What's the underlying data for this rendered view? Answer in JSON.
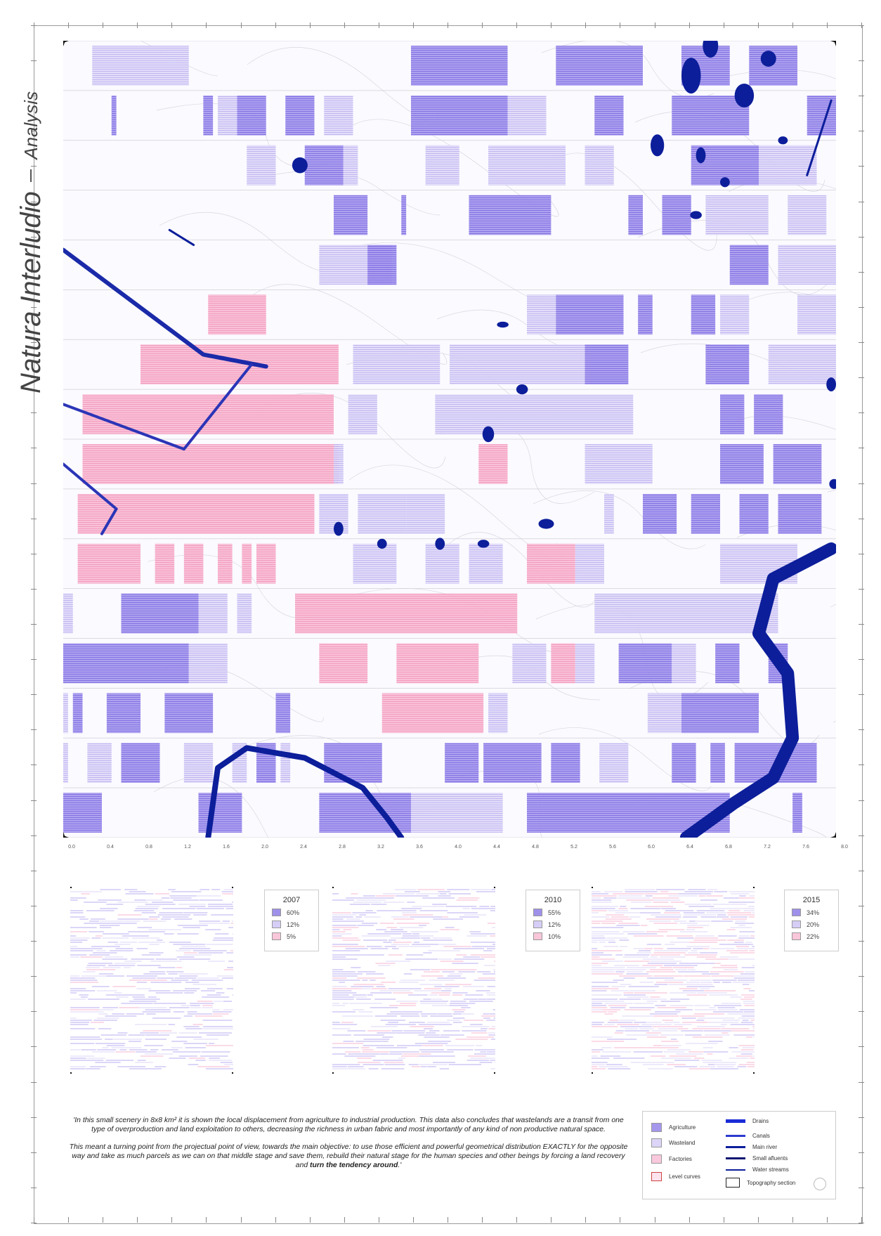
{
  "title": {
    "main": "Natura Interludio",
    "sub": "Analysis"
  },
  "colors": {
    "agriculture": "#8a78e8",
    "wasteland": "#c4b9f0",
    "factories": "#f7a5c6",
    "water": "#0c1e9a",
    "drains": "#1b2bd6"
  },
  "axis": {
    "ticks": [
      "0.0",
      "0.4",
      "0.8",
      "1.2",
      "1.6",
      "2.0",
      "2.4",
      "2.8",
      "3.2",
      "3.6",
      "4.0",
      "4.4",
      "4.8",
      "5.2",
      "5.6",
      "6.0",
      "6.4",
      "6.8",
      "7.2",
      "7.6",
      "8.0"
    ]
  },
  "main_map": {
    "x_range_km": [
      0,
      8
    ],
    "y_range_km": [
      0,
      8
    ],
    "strips": 16,
    "parcels": [
      {
        "row": 0,
        "x0": 0.3,
        "x1": 1.3,
        "type": "wasteland"
      },
      {
        "row": 0,
        "x0": 3.6,
        "x1": 4.6,
        "type": "agriculture"
      },
      {
        "row": 0,
        "x0": 5.1,
        "x1": 6.0,
        "type": "agriculture"
      },
      {
        "row": 0,
        "x0": 6.4,
        "x1": 6.9,
        "type": "agriculture"
      },
      {
        "row": 0,
        "x0": 7.1,
        "x1": 7.6,
        "type": "agriculture"
      },
      {
        "row": 1,
        "x0": 0.5,
        "x1": 0.55,
        "type": "agriculture"
      },
      {
        "row": 1,
        "x0": 1.45,
        "x1": 1.55,
        "type": "agriculture"
      },
      {
        "row": 1,
        "x0": 1.6,
        "x1": 1.8,
        "type": "wasteland"
      },
      {
        "row": 1,
        "x0": 1.8,
        "x1": 2.1,
        "type": "agriculture"
      },
      {
        "row": 1,
        "x0": 2.3,
        "x1": 2.6,
        "type": "agriculture"
      },
      {
        "row": 1,
        "x0": 2.7,
        "x1": 3.0,
        "type": "wasteland"
      },
      {
        "row": 1,
        "x0": 3.6,
        "x1": 4.6,
        "type": "agriculture"
      },
      {
        "row": 1,
        "x0": 4.6,
        "x1": 5.0,
        "type": "wasteland"
      },
      {
        "row": 1,
        "x0": 5.5,
        "x1": 5.8,
        "type": "agriculture"
      },
      {
        "row": 1,
        "x0": 6.3,
        "x1": 7.1,
        "type": "agriculture"
      },
      {
        "row": 1,
        "x0": 7.7,
        "x1": 8.0,
        "type": "agriculture"
      },
      {
        "row": 2,
        "x0": 1.9,
        "x1": 2.2,
        "type": "wasteland"
      },
      {
        "row": 2,
        "x0": 2.5,
        "x1": 2.9,
        "type": "agriculture"
      },
      {
        "row": 2,
        "x0": 2.9,
        "x1": 3.05,
        "type": "wasteland"
      },
      {
        "row": 2,
        "x0": 3.75,
        "x1": 4.1,
        "type": "wasteland"
      },
      {
        "row": 2,
        "x0": 4.4,
        "x1": 5.2,
        "type": "wasteland"
      },
      {
        "row": 2,
        "x0": 5.4,
        "x1": 5.7,
        "type": "wasteland"
      },
      {
        "row": 2,
        "x0": 6.5,
        "x1": 7.2,
        "type": "agriculture"
      },
      {
        "row": 2,
        "x0": 7.2,
        "x1": 7.8,
        "type": "wasteland"
      },
      {
        "row": 3,
        "x0": 2.8,
        "x1": 3.15,
        "type": "agriculture"
      },
      {
        "row": 3,
        "x0": 3.5,
        "x1": 3.55,
        "type": "agriculture"
      },
      {
        "row": 3,
        "x0": 4.2,
        "x1": 5.05,
        "type": "agriculture"
      },
      {
        "row": 3,
        "x0": 5.85,
        "x1": 6.0,
        "type": "agriculture"
      },
      {
        "row": 3,
        "x0": 6.2,
        "x1": 6.5,
        "type": "agriculture"
      },
      {
        "row": 3,
        "x0": 6.65,
        "x1": 7.3,
        "type": "wasteland"
      },
      {
        "row": 3,
        "x0": 7.5,
        "x1": 7.9,
        "type": "wasteland"
      },
      {
        "row": 4,
        "x0": 2.65,
        "x1": 3.4,
        "type": "wasteland"
      },
      {
        "row": 4,
        "x0": 3.15,
        "x1": 3.45,
        "type": "agriculture"
      },
      {
        "row": 4,
        "x0": 6.9,
        "x1": 7.3,
        "type": "agriculture"
      },
      {
        "row": 4,
        "x0": 7.4,
        "x1": 8.0,
        "type": "wasteland"
      },
      {
        "row": 5,
        "x0": 1.5,
        "x1": 2.1,
        "type": "factories"
      },
      {
        "row": 5,
        "x0": 4.8,
        "x1": 5.1,
        "type": "wasteland"
      },
      {
        "row": 5,
        "x0": 5.1,
        "x1": 5.8,
        "type": "agriculture"
      },
      {
        "row": 5,
        "x0": 5.95,
        "x1": 6.1,
        "type": "agriculture"
      },
      {
        "row": 5,
        "x0": 6.5,
        "x1": 6.75,
        "type": "agriculture"
      },
      {
        "row": 5,
        "x0": 6.8,
        "x1": 7.1,
        "type": "wasteland"
      },
      {
        "row": 5,
        "x0": 7.6,
        "x1": 8.0,
        "type": "wasteland"
      },
      {
        "row": 6,
        "x0": 0.8,
        "x1": 2.85,
        "type": "factories"
      },
      {
        "row": 6,
        "x0": 3.0,
        "x1": 3.9,
        "type": "wasteland"
      },
      {
        "row": 6,
        "x0": 4.0,
        "x1": 5.4,
        "type": "wasteland"
      },
      {
        "row": 6,
        "x0": 5.4,
        "x1": 5.85,
        "type": "agriculture"
      },
      {
        "row": 6,
        "x0": 6.65,
        "x1": 7.1,
        "type": "agriculture"
      },
      {
        "row": 6,
        "x0": 7.3,
        "x1": 8.0,
        "type": "wasteland"
      },
      {
        "row": 7,
        "x0": 0.2,
        "x1": 2.8,
        "type": "factories"
      },
      {
        "row": 7,
        "x0": 2.95,
        "x1": 3.25,
        "type": "wasteland"
      },
      {
        "row": 7,
        "x0": 3.85,
        "x1": 5.9,
        "type": "wasteland"
      },
      {
        "row": 7,
        "x0": 6.8,
        "x1": 7.05,
        "type": "agriculture"
      },
      {
        "row": 7,
        "x0": 7.15,
        "x1": 7.45,
        "type": "agriculture"
      },
      {
        "row": 8,
        "x0": 0.2,
        "x1": 2.85,
        "type": "factories"
      },
      {
        "row": 8,
        "x0": 2.8,
        "x1": 2.9,
        "type": "wasteland"
      },
      {
        "row": 8,
        "x0": 4.3,
        "x1": 4.6,
        "type": "factories"
      },
      {
        "row": 8,
        "x0": 5.4,
        "x1": 6.1,
        "type": "wasteland"
      },
      {
        "row": 8,
        "x0": 6.8,
        "x1": 7.25,
        "type": "agriculture"
      },
      {
        "row": 8,
        "x0": 7.35,
        "x1": 7.85,
        "type": "agriculture"
      },
      {
        "row": 9,
        "x0": 0.15,
        "x1": 2.6,
        "type": "factories"
      },
      {
        "row": 9,
        "x0": 2.65,
        "x1": 2.95,
        "type": "wasteland"
      },
      {
        "row": 9,
        "x0": 3.05,
        "x1": 3.55,
        "type": "wasteland"
      },
      {
        "row": 9,
        "x0": 3.55,
        "x1": 3.95,
        "type": "wasteland"
      },
      {
        "row": 9,
        "x0": 5.6,
        "x1": 5.7,
        "type": "wasteland"
      },
      {
        "row": 9,
        "x0": 6.0,
        "x1": 6.35,
        "type": "agriculture"
      },
      {
        "row": 9,
        "x0": 6.5,
        "x1": 6.8,
        "type": "agriculture"
      },
      {
        "row": 9,
        "x0": 7.0,
        "x1": 7.3,
        "type": "agriculture"
      },
      {
        "row": 9,
        "x0": 7.4,
        "x1": 7.85,
        "type": "agriculture"
      },
      {
        "row": 10,
        "x0": 0.15,
        "x1": 0.8,
        "type": "factories"
      },
      {
        "row": 10,
        "x0": 0.95,
        "x1": 1.15,
        "type": "factories"
      },
      {
        "row": 10,
        "x0": 1.25,
        "x1": 1.45,
        "type": "factories"
      },
      {
        "row": 10,
        "x0": 1.6,
        "x1": 1.75,
        "type": "factories"
      },
      {
        "row": 10,
        "x0": 1.85,
        "x1": 1.95,
        "type": "factories"
      },
      {
        "row": 10,
        "x0": 2.0,
        "x1": 2.2,
        "type": "factories"
      },
      {
        "row": 10,
        "x0": 3.0,
        "x1": 3.45,
        "type": "wasteland"
      },
      {
        "row": 10,
        "x0": 3.75,
        "x1": 4.1,
        "type": "wasteland"
      },
      {
        "row": 10,
        "x0": 4.2,
        "x1": 4.55,
        "type": "wasteland"
      },
      {
        "row": 10,
        "x0": 4.8,
        "x1": 5.3,
        "type": "factories"
      },
      {
        "row": 10,
        "x0": 5.3,
        "x1": 5.6,
        "type": "wasteland"
      },
      {
        "row": 10,
        "x0": 6.8,
        "x1": 7.6,
        "type": "wasteland"
      },
      {
        "row": 11,
        "x0": 0.0,
        "x1": 0.1,
        "type": "wasteland"
      },
      {
        "row": 11,
        "x0": 0.6,
        "x1": 1.4,
        "type": "agriculture"
      },
      {
        "row": 11,
        "x0": 1.4,
        "x1": 1.7,
        "type": "wasteland"
      },
      {
        "row": 11,
        "x0": 1.8,
        "x1": 1.95,
        "type": "wasteland"
      },
      {
        "row": 11,
        "x0": 2.4,
        "x1": 4.7,
        "type": "factories"
      },
      {
        "row": 11,
        "x0": 5.5,
        "x1": 6.8,
        "type": "wasteland"
      },
      {
        "row": 11,
        "x0": 6.8,
        "x1": 7.4,
        "type": "wasteland"
      },
      {
        "row": 12,
        "x0": 0.0,
        "x1": 1.3,
        "type": "agriculture"
      },
      {
        "row": 12,
        "x0": 1.3,
        "x1": 1.7,
        "type": "wasteland"
      },
      {
        "row": 12,
        "x0": 2.65,
        "x1": 3.15,
        "type": "factories"
      },
      {
        "row": 12,
        "x0": 3.45,
        "x1": 4.3,
        "type": "factories"
      },
      {
        "row": 12,
        "x0": 4.65,
        "x1": 5.0,
        "type": "wasteland"
      },
      {
        "row": 12,
        "x0": 5.05,
        "x1": 5.3,
        "type": "factories"
      },
      {
        "row": 12,
        "x0": 5.3,
        "x1": 5.5,
        "type": "wasteland"
      },
      {
        "row": 12,
        "x0": 5.75,
        "x1": 6.3,
        "type": "agriculture"
      },
      {
        "row": 12,
        "x0": 6.3,
        "x1": 6.55,
        "type": "wasteland"
      },
      {
        "row": 12,
        "x0": 6.75,
        "x1": 7.0,
        "type": "agriculture"
      },
      {
        "row": 12,
        "x0": 7.3,
        "x1": 7.5,
        "type": "agriculture"
      },
      {
        "row": 13,
        "x0": 0.0,
        "x1": 0.05,
        "type": "wasteland"
      },
      {
        "row": 13,
        "x0": 0.1,
        "x1": 0.2,
        "type": "agriculture"
      },
      {
        "row": 13,
        "x0": 0.45,
        "x1": 0.8,
        "type": "agriculture"
      },
      {
        "row": 13,
        "x0": 1.05,
        "x1": 1.55,
        "type": "agriculture"
      },
      {
        "row": 13,
        "x0": 2.2,
        "x1": 2.35,
        "type": "agriculture"
      },
      {
        "row": 13,
        "x0": 3.3,
        "x1": 4.35,
        "type": "factories"
      },
      {
        "row": 13,
        "x0": 4.4,
        "x1": 4.6,
        "type": "wasteland"
      },
      {
        "row": 13,
        "x0": 6.05,
        "x1": 6.4,
        "type": "wasteland"
      },
      {
        "row": 13,
        "x0": 6.4,
        "x1": 7.2,
        "type": "agriculture"
      },
      {
        "row": 14,
        "x0": 0.0,
        "x1": 0.05,
        "type": "wasteland"
      },
      {
        "row": 14,
        "x0": 0.25,
        "x1": 0.5,
        "type": "wasteland"
      },
      {
        "row": 14,
        "x0": 0.6,
        "x1": 1.0,
        "type": "agriculture"
      },
      {
        "row": 14,
        "x0": 1.25,
        "x1": 1.55,
        "type": "wasteland"
      },
      {
        "row": 14,
        "x0": 1.75,
        "x1": 1.9,
        "type": "wasteland"
      },
      {
        "row": 14,
        "x0": 2.0,
        "x1": 2.2,
        "type": "agriculture"
      },
      {
        "row": 14,
        "x0": 2.25,
        "x1": 2.35,
        "type": "wasteland"
      },
      {
        "row": 14,
        "x0": 2.7,
        "x1": 3.3,
        "type": "agriculture"
      },
      {
        "row": 14,
        "x0": 3.95,
        "x1": 4.3,
        "type": "agriculture"
      },
      {
        "row": 14,
        "x0": 4.35,
        "x1": 4.6,
        "type": "agriculture"
      },
      {
        "row": 14,
        "x0": 4.6,
        "x1": 4.95,
        "type": "agriculture"
      },
      {
        "row": 14,
        "x0": 5.05,
        "x1": 5.35,
        "type": "agriculture"
      },
      {
        "row": 14,
        "x0": 5.55,
        "x1": 5.85,
        "type": "wasteland"
      },
      {
        "row": 14,
        "x0": 6.3,
        "x1": 6.55,
        "type": "agriculture"
      },
      {
        "row": 14,
        "x0": 6.7,
        "x1": 6.85,
        "type": "agriculture"
      },
      {
        "row": 14,
        "x0": 6.95,
        "x1": 7.8,
        "type": "agriculture"
      },
      {
        "row": 15,
        "x0": 0.0,
        "x1": 0.4,
        "type": "agriculture"
      },
      {
        "row": 15,
        "x0": 1.4,
        "x1": 1.85,
        "type": "agriculture"
      },
      {
        "row": 15,
        "x0": 2.65,
        "x1": 3.6,
        "type": "agriculture"
      },
      {
        "row": 15,
        "x0": 3.6,
        "x1": 4.55,
        "type": "wasteland"
      },
      {
        "row": 15,
        "x0": 4.8,
        "x1": 6.9,
        "type": "agriculture"
      },
      {
        "row": 15,
        "x0": 7.55,
        "x1": 7.65,
        "type": "agriculture"
      }
    ],
    "water_bodies": [
      {
        "x": 6.7,
        "y": 0.05,
        "rx": 0.08,
        "ry": 0.12
      },
      {
        "x": 6.5,
        "y": 0.35,
        "rx": 0.1,
        "ry": 0.18
      },
      {
        "x": 7.05,
        "y": 0.55,
        "rx": 0.1,
        "ry": 0.12
      },
      {
        "x": 7.3,
        "y": 0.18,
        "rx": 0.08,
        "ry": 0.08
      },
      {
        "x": 6.15,
        "y": 1.05,
        "rx": 0.07,
        "ry": 0.11
      },
      {
        "x": 7.45,
        "y": 1.0,
        "rx": 0.05,
        "ry": 0.04
      },
      {
        "x": 6.6,
        "y": 1.15,
        "rx": 0.05,
        "ry": 0.08
      },
      {
        "x": 6.85,
        "y": 1.42,
        "rx": 0.05,
        "ry": 0.05
      },
      {
        "x": 6.55,
        "y": 1.75,
        "rx": 0.06,
        "ry": 0.04
      },
      {
        "x": 2.45,
        "y": 1.25,
        "rx": 0.08,
        "ry": 0.08
      },
      {
        "x": 4.55,
        "y": 2.85,
        "rx": 0.06,
        "ry": 0.03
      },
      {
        "x": 4.75,
        "y": 3.5,
        "rx": 0.06,
        "ry": 0.05
      },
      {
        "x": 4.4,
        "y": 3.95,
        "rx": 0.06,
        "ry": 0.08
      },
      {
        "x": 7.95,
        "y": 3.45,
        "rx": 0.05,
        "ry": 0.07
      },
      {
        "x": 7.98,
        "y": 4.45,
        "rx": 0.05,
        "ry": 0.05
      },
      {
        "x": 2.85,
        "y": 4.9,
        "rx": 0.05,
        "ry": 0.07
      },
      {
        "x": 3.3,
        "y": 5.05,
        "rx": 0.05,
        "ry": 0.05
      },
      {
        "x": 3.9,
        "y": 5.05,
        "rx": 0.05,
        "ry": 0.06
      },
      {
        "x": 4.35,
        "y": 5.05,
        "rx": 0.06,
        "ry": 0.04
      },
      {
        "x": 5.0,
        "y": 4.85,
        "rx": 0.08,
        "ry": 0.05
      }
    ],
    "main_river": [
      [
        7.95,
        5.1
      ],
      [
        7.35,
        5.4
      ],
      [
        7.2,
        5.95
      ],
      [
        7.5,
        6.35
      ],
      [
        7.55,
        7.0
      ],
      [
        7.35,
        7.4
      ],
      [
        6.95,
        7.65
      ],
      [
        6.45,
        8.0
      ]
    ],
    "canal_a": [
      [
        0.0,
        2.1
      ],
      [
        1.45,
        3.15
      ],
      [
        2.1,
        3.27
      ]
    ],
    "canal_b": [
      [
        1.95,
        3.25
      ],
      [
        1.25,
        4.1
      ],
      [
        0.0,
        3.65
      ]
    ],
    "canal_c": [
      [
        0.0,
        4.25
      ],
      [
        0.55,
        4.7
      ],
      [
        0.4,
        4.95
      ]
    ],
    "small_affluent": [
      [
        1.5,
        8.0
      ],
      [
        1.6,
        7.3
      ],
      [
        1.9,
        7.1
      ],
      [
        2.5,
        7.2
      ],
      [
        3.1,
        7.5
      ],
      [
        3.35,
        7.8
      ],
      [
        3.5,
        8.0
      ]
    ],
    "stream_a": [
      [
        1.1,
        1.9
      ],
      [
        1.35,
        2.05
      ]
    ],
    "stream_b": [
      [
        7.95,
        0.6
      ],
      [
        7.7,
        1.35
      ]
    ]
  },
  "mini_maps": [
    {
      "year": "2007",
      "agriculture": "60%",
      "wasteland": "12%",
      "factories": "5%"
    },
    {
      "year": "2010",
      "agriculture": "55%",
      "wasteland": "12%",
      "factories": "10%"
    },
    {
      "year": "2015",
      "agriculture": "34%",
      "wasteland": "20%",
      "factories": "22%"
    }
  ],
  "quote": {
    "p1": "'In this small scenery in 8x8 km² it is shown the local displacement from agriculture to industrial production. This data also concludes that wastelands are a transit from one type of overproduction and land exploitation to others, decreasing the richness in urban fabric and most importantly of any kind of non productive natural space.",
    "p2": "This meant a turning point from the projectual point of view, towards the main objective: to use those efficient and powerful geometrical distribution EXACTLY for the opposite way and take as much parcels as we can on that middle stage and save them, rebuild their natural stage for the human species and other beings by forcing a land recovery and",
    "p2_bold": "turn the tendency around",
    "p2_end": ".'"
  },
  "legend": {
    "agriculture": "Agriculture",
    "wasteland": "Wasteland",
    "factories": "Factories",
    "level_curves": "Level curves",
    "drains": "Drains",
    "canals": "Canals",
    "main_river": "Main river",
    "small_affluents": "Small afluents",
    "water_streams": "Water streams",
    "topography_section": "Topography section"
  }
}
